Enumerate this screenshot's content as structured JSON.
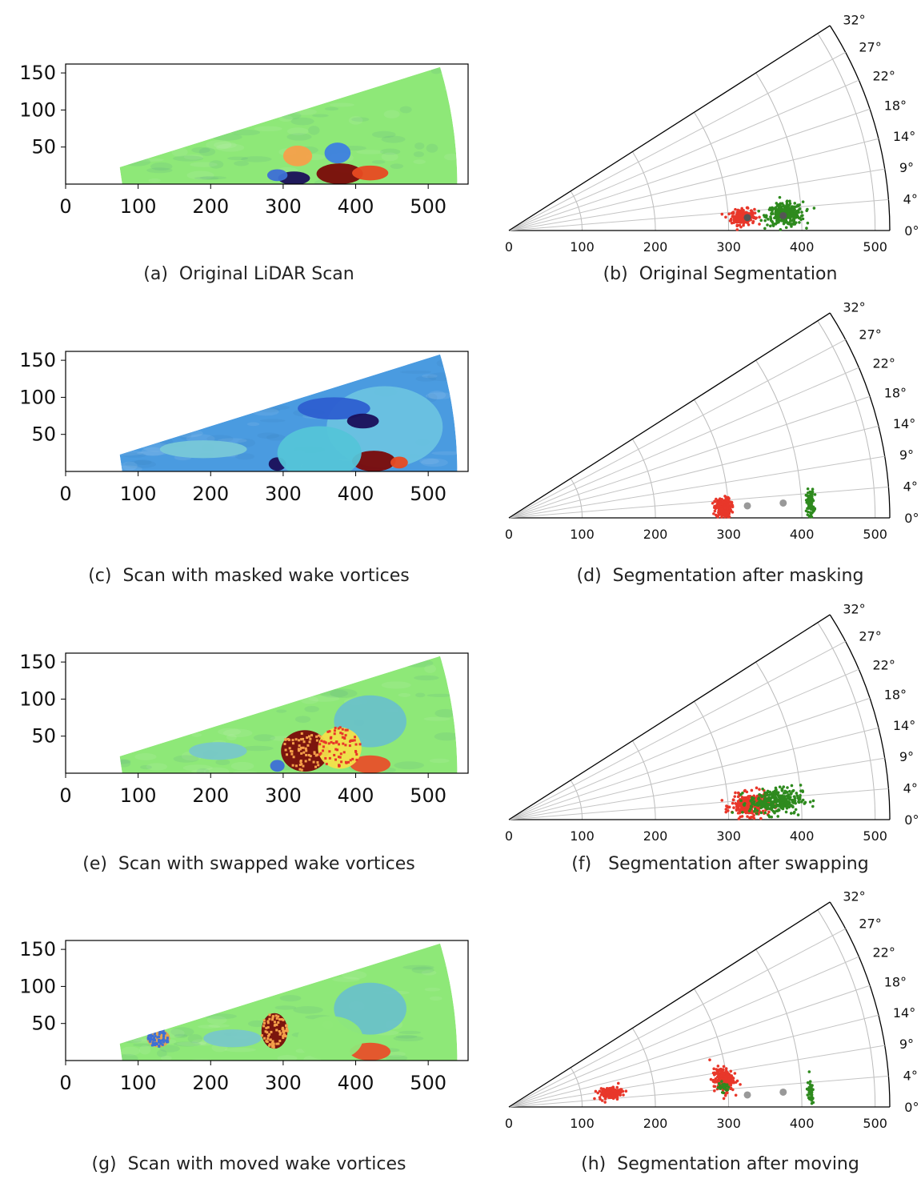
{
  "figure": {
    "captions": [
      "(a)  Original LiDAR Scan",
      "(b)  Original Segmentation",
      "(c)  Scan with masked wake vortices",
      "(d)  Segmentation after masking",
      "(e)  Scan with swapped wake vortices",
      "(f)   Segmentation after swapping",
      "(g)  Scan with moved wake vortices",
      "(h)  Segmentation after moving"
    ]
  },
  "colors": {
    "background_green": "#8ee878",
    "masked_blue": "#4a9be0",
    "dark_red": "#7a0a08",
    "dark_blue": "#1a0f5a",
    "cyan_mask": "#54c4d8",
    "seg_red": "#e8372a",
    "seg_green": "#2e8a1e",
    "seg_gray": "#999999"
  },
  "chart_data": [
    {
      "id": "a",
      "type": "heatmap",
      "x_ticks": [
        0,
        100,
        200,
        300,
        400,
        500
      ],
      "y_ticks": [
        50,
        100,
        150
      ],
      "xlim": [
        0,
        555
      ],
      "ylim": [
        0,
        162
      ],
      "sector": {
        "r_min": 78,
        "r_max": 540,
        "theta_max_deg": 17
      },
      "background": "#8ee878",
      "patches": [
        {
          "x": 315,
          "y": 8,
          "rx": 22,
          "ry": 9,
          "color": "#1a0f5a"
        },
        {
          "x": 292,
          "y": 12,
          "rx": 14,
          "ry": 8,
          "color": "#3d6fd6"
        },
        {
          "x": 320,
          "y": 38,
          "rx": 20,
          "ry": 14,
          "color": "#f5a04a"
        },
        {
          "x": 378,
          "y": 14,
          "rx": 32,
          "ry": 14,
          "color": "#7a0a08"
        },
        {
          "x": 420,
          "y": 15,
          "rx": 25,
          "ry": 10,
          "color": "#e84a22"
        },
        {
          "x": 375,
          "y": 42,
          "rx": 18,
          "ry": 14,
          "color": "#3d80e0"
        }
      ]
    },
    {
      "id": "b",
      "type": "scatter",
      "polar": true,
      "r_ticks": [
        0,
        100,
        200,
        300,
        400,
        500
      ],
      "theta_labels": [
        "0°",
        "4°",
        "9°",
        "14°",
        "18°",
        "22°",
        "27°",
        "32°"
      ],
      "theta_angles": [
        0,
        4.5,
        9,
        13.5,
        18,
        22.5,
        27,
        31.5
      ],
      "r_max": 520,
      "clusters": [
        {
          "r": 320,
          "theta": 3.2,
          "dr": 18,
          "dtheta": 2.0,
          "color": "#e8372a",
          "n": 220
        },
        {
          "r": 378,
          "theta": 3.2,
          "dr": 28,
          "dtheta": 2.4,
          "color": "#2e8a1e",
          "n": 320
        }
      ],
      "points": [
        {
          "r": 326,
          "theta": 3.0,
          "color": "#555555"
        },
        {
          "r": 375,
          "theta": 3.0,
          "color": "#555555"
        }
      ]
    },
    {
      "id": "c",
      "type": "heatmap",
      "x_ticks": [
        0,
        100,
        200,
        300,
        400,
        500
      ],
      "y_ticks": [
        50,
        100,
        150
      ],
      "xlim": [
        0,
        555
      ],
      "ylim": [
        0,
        162
      ],
      "sector": {
        "r_min": 78,
        "r_max": 540,
        "theta_max_deg": 17
      },
      "background": "#4a9be0",
      "patches": [
        {
          "x": 440,
          "y": 60,
          "rx": 80,
          "ry": 55,
          "color": "#6ac2e0"
        },
        {
          "x": 190,
          "y": 30,
          "rx": 60,
          "ry": 12,
          "color": "#78c8d8"
        },
        {
          "x": 370,
          "y": 85,
          "rx": 50,
          "ry": 15,
          "color": "#2d5fd0"
        },
        {
          "x": 410,
          "y": 68,
          "rx": 22,
          "ry": 10,
          "color": "#1a0f5a"
        },
        {
          "x": 292,
          "y": 10,
          "rx": 12,
          "ry": 9,
          "color": "#1a0f5a"
        },
        {
          "x": 425,
          "y": 14,
          "rx": 30,
          "ry": 14,
          "color": "#7a0a08"
        },
        {
          "x": 460,
          "y": 12,
          "rx": 12,
          "ry": 8,
          "color": "#e84a22"
        },
        {
          "x": 350,
          "y": 25,
          "rx": 58,
          "ry": 36,
          "color": "#54c4d8"
        }
      ]
    },
    {
      "id": "d",
      "type": "scatter",
      "polar": true,
      "r_ticks": [
        0,
        100,
        200,
        300,
        400,
        500
      ],
      "theta_labels": [
        "0°",
        "4°",
        "9°",
        "14°",
        "18°",
        "22°",
        "27°",
        "32°"
      ],
      "theta_angles": [
        0,
        4.5,
        9,
        13.5,
        18,
        22.5,
        27,
        31.5
      ],
      "r_max": 520,
      "clusters": [
        {
          "r": 293,
          "theta": 2.6,
          "dr": 12,
          "dtheta": 2.8,
          "color": "#e8372a",
          "n": 200
        },
        {
          "r": 412,
          "theta": 2.8,
          "dr": 6,
          "dtheta": 2.6,
          "color": "#2e8a1e",
          "n": 90
        }
      ],
      "points": [
        {
          "r": 326,
          "theta": 2.8,
          "color": "#999999"
        },
        {
          "r": 375,
          "theta": 3.0,
          "color": "#999999"
        }
      ]
    },
    {
      "id": "e",
      "type": "heatmap",
      "x_ticks": [
        0,
        100,
        200,
        300,
        400,
        500
      ],
      "y_ticks": [
        50,
        100,
        150
      ],
      "xlim": [
        0,
        555
      ],
      "ylim": [
        0,
        162
      ],
      "sector": {
        "r_min": 78,
        "r_max": 540,
        "theta_max_deg": 17
      },
      "background": "#8ee878",
      "patches": [
        {
          "x": 420,
          "y": 70,
          "rx": 50,
          "ry": 35,
          "color": "#6ac2c8"
        },
        {
          "x": 210,
          "y": 30,
          "rx": 40,
          "ry": 12,
          "color": "#78c8c8"
        },
        {
          "x": 420,
          "y": 12,
          "rx": 28,
          "ry": 12,
          "color": "#e8502a"
        },
        {
          "x": 292,
          "y": 10,
          "rx": 10,
          "ry": 8,
          "color": "#3d6fd6"
        },
        {
          "x": 330,
          "y": 30,
          "rx": 33,
          "ry": 28,
          "color": "#7a0a08",
          "speckle": "#f5a04a"
        },
        {
          "x": 378,
          "y": 34,
          "rx": 30,
          "ry": 28,
          "color": "#f3e04a",
          "speckle": "#e8372a"
        }
      ]
    },
    {
      "id": "f",
      "type": "scatter",
      "polar": true,
      "r_ticks": [
        0,
        100,
        200,
        300,
        400,
        500
      ],
      "theta_labels": [
        "0°",
        "4°",
        "9°",
        "14°",
        "18°",
        "22°",
        "27°",
        "32°"
      ],
      "theta_angles": [
        0,
        4.5,
        9,
        13.5,
        18,
        22.5,
        27,
        31.5
      ],
      "r_max": 520,
      "clusters": [
        {
          "r": 330,
          "theta": 3.4,
          "dr": 28,
          "dtheta": 2.8,
          "color": "#e8372a",
          "n": 320
        },
        {
          "r": 365,
          "theta": 3.8,
          "dr": 40,
          "dtheta": 3.0,
          "color": "#2e8a1e",
          "n": 300
        }
      ],
      "points": []
    },
    {
      "id": "g",
      "type": "heatmap",
      "x_ticks": [
        0,
        100,
        200,
        300,
        400,
        500
      ],
      "y_ticks": [
        50,
        100,
        150
      ],
      "xlim": [
        0,
        555
      ],
      "ylim": [
        0,
        162
      ],
      "sector": {
        "r_min": 78,
        "r_max": 540,
        "theta_max_deg": 17
      },
      "background": "#8ee878",
      "patches": [
        {
          "x": 420,
          "y": 70,
          "rx": 50,
          "ry": 35,
          "color": "#6ac2c8"
        },
        {
          "x": 230,
          "y": 30,
          "rx": 40,
          "ry": 12,
          "color": "#78c8c8"
        },
        {
          "x": 420,
          "y": 12,
          "rx": 28,
          "ry": 12,
          "color": "#e8502a"
        },
        {
          "x": 365,
          "y": 30,
          "rx": 45,
          "ry": 30,
          "color": "#8ee878"
        },
        {
          "x": 128,
          "y": 30,
          "rx": 16,
          "ry": 12,
          "color": "#e8a050",
          "speckle": "#3d6fd6"
        },
        {
          "x": 288,
          "y": 40,
          "rx": 18,
          "ry": 24,
          "color": "#7a0a08",
          "speckle": "#f5a04a"
        }
      ]
    },
    {
      "id": "h",
      "type": "scatter",
      "polar": true,
      "r_ticks": [
        0,
        100,
        200,
        300,
        400,
        500
      ],
      "theta_labels": [
        "0°",
        "4°",
        "9°",
        "14°",
        "18°",
        "22°",
        "27°",
        "32°"
      ],
      "theta_angles": [
        0,
        4.5,
        9,
        13.5,
        18,
        22.5,
        27,
        31.5
      ],
      "r_max": 520,
      "clusters": [
        {
          "r": 140,
          "theta": 7.5,
          "dr": 18,
          "dtheta": 3.5,
          "color": "#e8372a",
          "n": 140
        },
        {
          "r": 295,
          "theta": 7.0,
          "dr": 15,
          "dtheta": 3.6,
          "color": "#e8372a",
          "n": 200
        },
        {
          "r": 295,
          "theta": 5.2,
          "dr": 8,
          "dtheta": 1.5,
          "color": "#2e8a1e",
          "n": 25
        },
        {
          "r": 412,
          "theta": 2.6,
          "dr": 5,
          "dtheta": 2.4,
          "color": "#2e8a1e",
          "n": 50
        }
      ],
      "points": [
        {
          "r": 326,
          "theta": 2.8,
          "color": "#999999"
        },
        {
          "r": 375,
          "theta": 3.0,
          "color": "#999999"
        }
      ]
    }
  ]
}
